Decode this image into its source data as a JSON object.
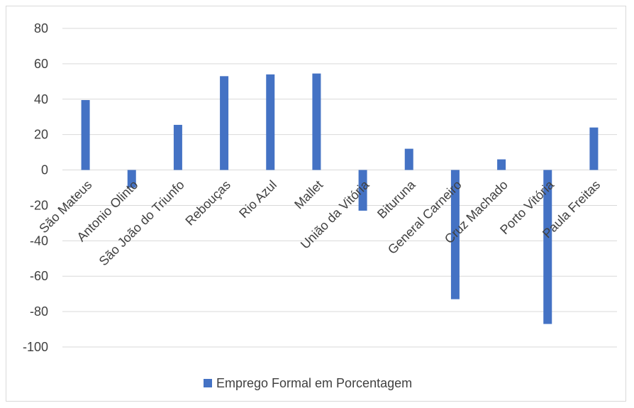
{
  "chart_data": {
    "type": "bar",
    "categories": [
      "São Mateus",
      "Antonio Olinto",
      "São João do Triunfo",
      "Rebouças",
      "Rio Azul",
      "Mallet",
      "União da Vitória",
      "Bituruna",
      "General Carneiro",
      "Cruz Machado",
      "Porto Vitória",
      "Paula Freitas"
    ],
    "series": [
      {
        "name": "Emprego Formal em Porcentagem",
        "values": [
          39.5,
          -10,
          25.5,
          53,
          54,
          54.5,
          -23,
          12,
          -73,
          6,
          -87,
          24
        ]
      }
    ],
    "yticks": [
      80,
      60,
      40,
      20,
      0,
      -20,
      -40,
      -60,
      -80,
      -100
    ],
    "ylim": [
      -100,
      80
    ],
    "grid": true,
    "legend_position": "bottom",
    "colors": {
      "bar": "#4472C4",
      "grid": "#d9d9d9",
      "text": "#404040"
    }
  }
}
